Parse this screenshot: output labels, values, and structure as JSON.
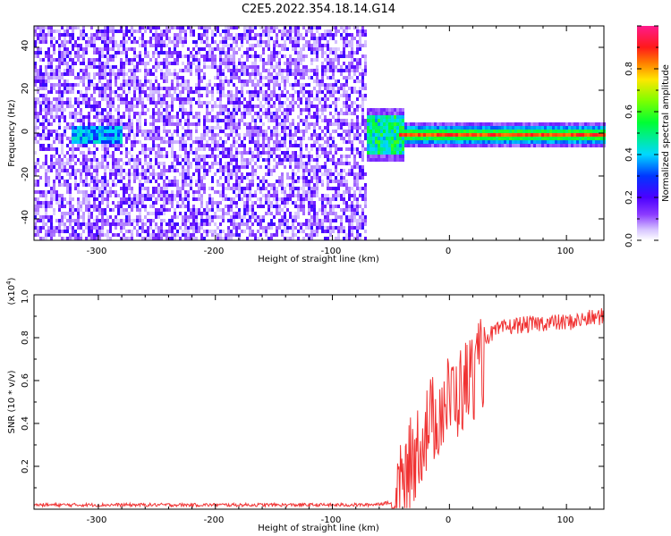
{
  "chart_data": [
    {
      "type": "heatmap",
      "title": "C2E5.2022.354.18.14.G14",
      "xlabel": "Height of straight line (km)",
      "ylabel": "Frequency (Hz)",
      "xlim": [
        -355,
        132
      ],
      "ylim": [
        -50,
        50
      ],
      "xticks": [
        "-300",
        "-200",
        "-100",
        "0",
        "100"
      ],
      "yticks": [
        "40",
        "20",
        "0",
        "-20",
        "-40"
      ],
      "colorbar": {
        "label": "Normalized spectral amplitude",
        "range": [
          0,
          1
        ],
        "ticks": [
          "0.0",
          "0.2",
          "0.4",
          "0.6",
          "0.8"
        ]
      },
      "features": {
        "noise_region_x": [
          -355,
          -72
        ],
        "weak_echo": {
          "x": [
            -325,
            -280
          ],
          "freq": 0
        },
        "strong_echo": {
          "x": [
            -72,
            132
          ],
          "freq": 0,
          "peak_x": [
            -45,
            130
          ]
        }
      }
    },
    {
      "type": "line",
      "title": "",
      "xlabel": "Height of straight line (km)",
      "ylabel": "SNR (10 * v/v)",
      "y_multiplier": "(x10",
      "y_multiplier_exp": "4",
      "y_multiplier_close": ")",
      "xlim": [
        -355,
        132
      ],
      "ylim": [
        0,
        1.0
      ],
      "xticks": [
        "-300",
        "-200",
        "-100",
        "0",
        "100"
      ],
      "yticks": [
        "0.2",
        "0.4",
        "0.6",
        "0.8",
        "1.0"
      ],
      "color": "#f03232",
      "series": [
        {
          "x": [
            -355,
            -300,
            -250,
            -200,
            -150,
            -100,
            -70,
            -50,
            -45,
            -40,
            -35,
            -30,
            -25,
            -20,
            -15,
            -10,
            -5,
            0,
            10,
            20,
            30,
            40,
            50,
            60,
            70,
            80,
            90,
            100,
            110,
            120,
            132
          ],
          "y": [
            0.02,
            0.02,
            0.02,
            0.02,
            0.02,
            0.02,
            0.02,
            0.03,
            0.15,
            0.22,
            0.3,
            0.36,
            0.43,
            0.48,
            0.52,
            0.56,
            0.6,
            0.62,
            0.66,
            0.74,
            0.8,
            0.83,
            0.85,
            0.86,
            0.86,
            0.87,
            0.87,
            0.87,
            0.88,
            0.89,
            0.9
          ]
        }
      ]
    }
  ]
}
